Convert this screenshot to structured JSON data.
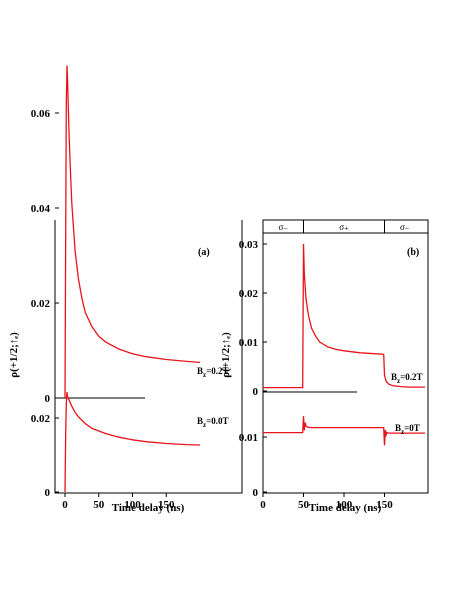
{
  "colors": {
    "curve": "#e8141c",
    "axis": "#000000",
    "baseline": "#000000"
  },
  "chart_data": [
    {
      "type": "line",
      "panel_label": "(a)",
      "xlabel": "Time delay (ns)",
      "ylabel": "ρ(+1/2;↑ₑ)",
      "xlim": [
        -10,
        200
      ],
      "x_ticks": [
        "0",
        "50",
        "100",
        "150"
      ],
      "y_ticks_upper": [
        "0.06",
        "0.04",
        "0.02",
        "0"
      ],
      "y_ticks_lower": [
        "0.02",
        "0"
      ],
      "series": [
        {
          "label": "Bz=0.2T",
          "x": [
            0,
            1,
            2,
            3,
            4,
            6,
            8,
            10,
            15,
            20,
            25,
            30,
            40,
            50,
            60,
            80,
            100,
            120,
            150,
            180,
            200
          ],
          "y": [
            0.0,
            0.035,
            0.062,
            0.07,
            0.066,
            0.056,
            0.048,
            0.041,
            0.031,
            0.025,
            0.021,
            0.018,
            0.015,
            0.013,
            0.0118,
            0.0103,
            0.0093,
            0.0087,
            0.0081,
            0.0077,
            0.0075
          ]
        },
        {
          "label": "Bz=0.0T",
          "x": [
            0,
            1,
            2,
            3,
            4,
            6,
            8,
            10,
            15,
            20,
            30,
            40,
            60,
            80,
            100,
            120,
            150,
            180,
            200
          ],
          "y": [
            0.0,
            0.016,
            0.024,
            0.027,
            0.0255,
            0.025,
            0.024,
            0.0232,
            0.0215,
            0.0203,
            0.0185,
            0.0172,
            0.0158,
            0.0148,
            0.0141,
            0.0136,
            0.0131,
            0.0128,
            0.0127
          ]
        }
      ]
    },
    {
      "type": "line",
      "panel_label": "(b)",
      "xlabel": "Time delay (ns)",
      "ylabel": "ρ(+1/2;↑ₑ)",
      "xlim": [
        0,
        200
      ],
      "x_ticks": [
        "0",
        "50",
        "100",
        "150"
      ],
      "y_ticks_upper": [
        "0.03",
        "0.02",
        "0.01",
        "0"
      ],
      "y_ticks_lower": [
        "0.01",
        "0"
      ],
      "pulse_sequence": [
        {
          "label": "σ₋",
          "from": 0,
          "to": 50
        },
        {
          "label": "σ₊",
          "from": 50,
          "to": 150
        },
        {
          "label": "σ₋",
          "from": 150,
          "to": 200
        }
      ],
      "series": [
        {
          "label": "Bz=0.2T",
          "x": [
            0,
            49,
            50,
            51,
            53,
            56,
            60,
            65,
            70,
            80,
            90,
            100,
            120,
            140,
            149,
            150,
            152,
            155,
            160,
            170,
            180,
            200
          ],
          "y": [
            0.0007,
            0.0007,
            0.03,
            0.024,
            0.019,
            0.0155,
            0.0128,
            0.0112,
            0.01,
            0.009,
            0.0085,
            0.0082,
            0.0078,
            0.0076,
            0.0075,
            0.0032,
            0.002,
            0.0014,
            0.0011,
            0.0009,
            0.0008,
            0.0008
          ]
        },
        {
          "label": "Bz=0T",
          "x": [
            0,
            49,
            50,
            51,
            52,
            53,
            55,
            60,
            80,
            100,
            120,
            140,
            149,
            150,
            151,
            152,
            153,
            155,
            160,
            180,
            200
          ],
          "y": [
            0.0108,
            0.0108,
            0.0138,
            0.0112,
            0.0126,
            0.012,
            0.0118,
            0.0117,
            0.0117,
            0.0117,
            0.0117,
            0.0117,
            0.0117,
            0.0085,
            0.0113,
            0.0104,
            0.0108,
            0.0107,
            0.0107,
            0.0107,
            0.0107
          ]
        }
      ]
    }
  ]
}
